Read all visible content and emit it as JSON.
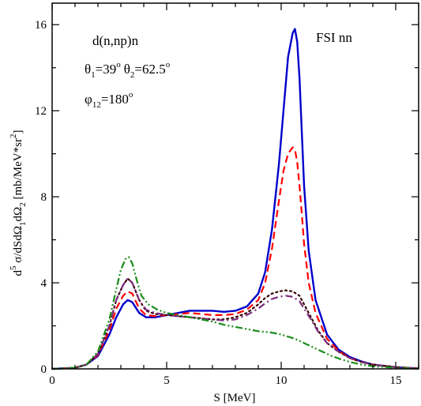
{
  "chart_data": {
    "type": "line",
    "title": "",
    "xlabel": "S [MeV]",
    "ylabel": {
      "d": "d",
      "sup5": "5",
      "sigma_part": " σ/dSdΩ",
      "sub1": "1",
      "dOmega": "dΩ",
      "sub2": "2",
      "units": " [mb/MeV*sr",
      "sup2": "2",
      "close": "]"
    },
    "xlim": [
      0,
      16
    ],
    "ylim": [
      0,
      17
    ],
    "xticks": [
      "0",
      "5",
      "10",
      "15"
    ],
    "yticks": [
      "0",
      "4",
      "8",
      "12",
      "16"
    ],
    "grid": false,
    "annotations": {
      "reaction": "d(n,np)n",
      "theta1_symbol": "θ",
      "theta1_sub": "1",
      "theta1_val": "=39",
      "theta1_deg": "o",
      "theta2_symbol": "θ",
      "theta2_sub": "2",
      "theta2_val": "=62.5",
      "theta2_deg": "o",
      "phi_symbol": "φ",
      "phi_sub": "12",
      "phi_val": "=180",
      "phi_deg": "o",
      "config": "FSI nn"
    },
    "series": [
      {
        "style": "solid",
        "color": "#0000cc",
        "x": [
          0,
          1,
          1.5,
          2,
          2.5,
          2.8,
          3.1,
          3.3,
          3.5,
          3.8,
          4.1,
          4.5,
          5,
          5.5,
          6,
          6.5,
          7,
          7.5,
          8,
          8.5,
          9,
          9.3,
          9.6,
          9.9,
          10.1,
          10.3,
          10.5,
          10.6,
          10.7,
          10.8,
          10.9,
          11.0,
          11.2,
          11.5,
          12,
          12.5,
          13,
          13.5,
          14,
          15,
          16
        ],
        "y": [
          0,
          0.05,
          0.2,
          0.6,
          1.6,
          2.4,
          3.0,
          3.2,
          3.1,
          2.6,
          2.4,
          2.4,
          2.5,
          2.6,
          2.7,
          2.7,
          2.7,
          2.65,
          2.7,
          2.9,
          3.5,
          4.5,
          6.5,
          9.5,
          12.0,
          14.5,
          15.6,
          15.8,
          15.2,
          13.5,
          11.0,
          8.5,
          5.5,
          3.2,
          1.6,
          0.9,
          0.55,
          0.35,
          0.2,
          0.08,
          0.02
        ]
      },
      {
        "style": "dashed",
        "color": "#ff0000",
        "x": [
          0,
          1,
          1.5,
          2,
          2.5,
          2.8,
          3.1,
          3.3,
          3.5,
          3.8,
          4.1,
          4.5,
          5,
          5.5,
          6,
          6.5,
          7,
          7.5,
          8,
          8.5,
          9,
          9.3,
          9.6,
          9.9,
          10.1,
          10.3,
          10.5,
          10.6,
          10.7,
          10.8,
          10.9,
          11.0,
          11.2,
          11.5,
          12,
          12.5,
          13,
          13.5,
          14,
          15,
          16
        ],
        "y": [
          0,
          0.05,
          0.2,
          0.65,
          1.8,
          2.8,
          3.4,
          3.6,
          3.5,
          2.8,
          2.5,
          2.45,
          2.5,
          2.55,
          2.6,
          2.55,
          2.5,
          2.5,
          2.55,
          2.75,
          3.2,
          4.0,
          5.6,
          7.8,
          9.2,
          10.0,
          10.3,
          10.2,
          9.6,
          8.5,
          7.2,
          5.8,
          4.0,
          2.6,
          1.4,
          0.85,
          0.5,
          0.32,
          0.2,
          0.08,
          0.02
        ]
      },
      {
        "style": "dotted",
        "color": "#330000",
        "x": [
          0,
          1,
          1.5,
          2,
          2.5,
          2.8,
          3.1,
          3.3,
          3.5,
          3.8,
          4.1,
          4.5,
          5,
          5.5,
          6,
          6.5,
          7,
          7.5,
          8,
          8.5,
          9,
          9.3,
          9.6,
          9.9,
          10.2,
          10.5,
          10.8,
          11.0,
          11.3,
          11.6,
          12,
          12.5,
          13,
          13.5,
          14,
          15,
          16
        ],
        "y": [
          0,
          0.05,
          0.2,
          0.7,
          2.0,
          3.2,
          3.9,
          4.2,
          4.0,
          3.2,
          2.7,
          2.55,
          2.5,
          2.45,
          2.4,
          2.35,
          2.3,
          2.3,
          2.4,
          2.6,
          3.0,
          3.3,
          3.5,
          3.6,
          3.65,
          3.6,
          3.4,
          3.0,
          2.4,
          1.8,
          1.2,
          0.8,
          0.5,
          0.32,
          0.2,
          0.08,
          0.02
        ]
      },
      {
        "style": "dashdot",
        "color": "#7a2a7a",
        "x": [
          0,
          1,
          1.5,
          2,
          2.5,
          2.8,
          3.1,
          3.3,
          3.5,
          3.8,
          4.1,
          4.5,
          5,
          5.5,
          6,
          6.5,
          7,
          7.5,
          8,
          8.5,
          9,
          9.3,
          9.6,
          9.9,
          10.2,
          10.5,
          10.8,
          11.0,
          11.3,
          11.6,
          12,
          12.5,
          13,
          13.5,
          14,
          15,
          16
        ],
        "y": [
          0,
          0.05,
          0.2,
          0.7,
          2.0,
          3.2,
          3.9,
          4.2,
          4.0,
          3.2,
          2.75,
          2.6,
          2.5,
          2.45,
          2.4,
          2.35,
          2.3,
          2.25,
          2.3,
          2.5,
          2.8,
          3.05,
          3.25,
          3.35,
          3.4,
          3.35,
          3.15,
          2.8,
          2.3,
          1.75,
          1.2,
          0.8,
          0.5,
          0.32,
          0.2,
          0.08,
          0.02
        ]
      },
      {
        "style": "dashdotdot",
        "color": "#1a8c1a",
        "x": [
          0,
          1,
          1.5,
          2,
          2.5,
          2.8,
          3.0,
          3.2,
          3.35,
          3.5,
          3.7,
          3.9,
          4.2,
          4.6,
          5,
          5.5,
          6,
          6.5,
          7,
          7.5,
          8,
          8.5,
          9,
          9.5,
          10,
          10.3,
          10.6,
          11.0,
          11.4,
          11.8,
          12.2,
          12.6,
          13,
          13.5,
          14,
          15,
          16
        ],
        "y": [
          0,
          0.05,
          0.2,
          0.8,
          2.3,
          3.7,
          4.6,
          5.1,
          5.2,
          4.9,
          4.1,
          3.4,
          3.0,
          2.75,
          2.6,
          2.5,
          2.4,
          2.3,
          2.2,
          2.05,
          1.95,
          1.85,
          1.75,
          1.7,
          1.6,
          1.5,
          1.4,
          1.2,
          1.0,
          0.8,
          0.6,
          0.45,
          0.32,
          0.2,
          0.12,
          0.05,
          0.01
        ]
      }
    ]
  }
}
